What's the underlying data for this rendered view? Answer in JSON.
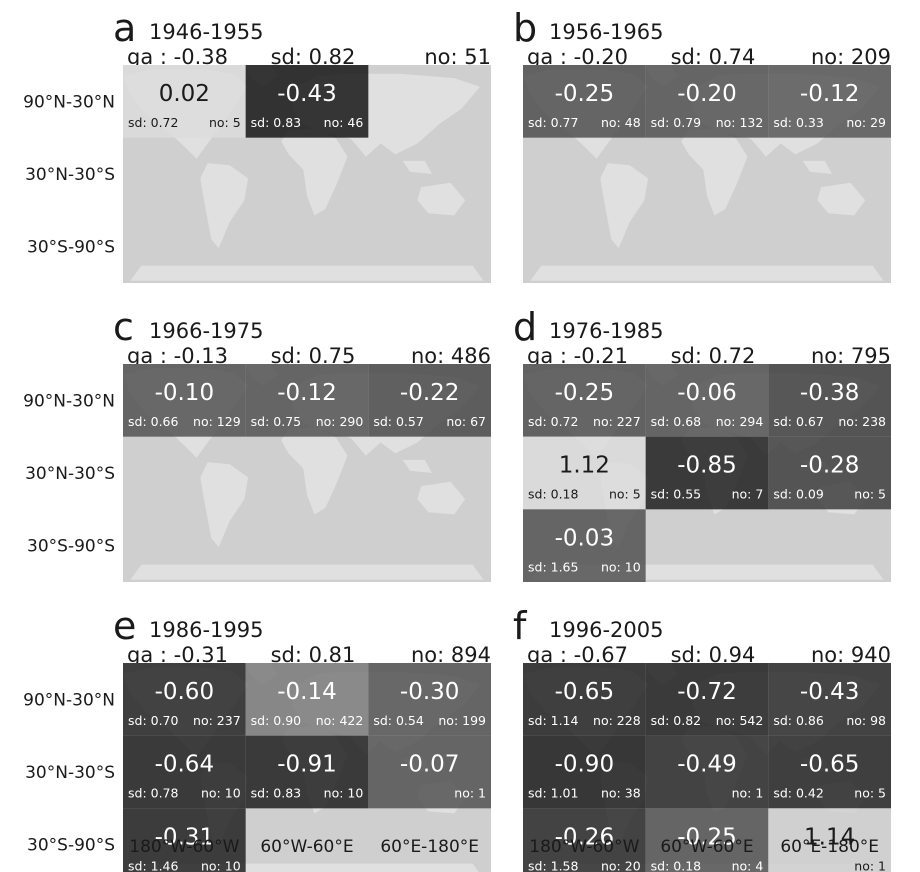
{
  "row_labels": [
    "90°N-30°N",
    "30°N-30°S",
    "30°S-90°S"
  ],
  "col_labels": [
    "180°W-60°W",
    "60°W-60°E",
    "60°E-180°E"
  ],
  "colors": {
    "map_bg": "#cfcfcf",
    "land": "#e0e0e0",
    "text_dark": "#1a1a1a",
    "text_light": "#ffffff"
  },
  "chart_data": {
    "type": "heatmap",
    "panels": [
      {
        "letter": "a",
        "period": "1946-1955",
        "ga": "ga : -0.38",
        "sd": "sd: 0.82",
        "no": "no: 51",
        "cells": [
          {
            "row": 0,
            "col": 0,
            "value": "0.02",
            "sd": "sd: 0.72",
            "no": "no: 5",
            "shade": 0.98
          },
          {
            "row": 0,
            "col": 1,
            "value": "-0.43",
            "sd": "sd: 0.83",
            "no": "no: 46",
            "shade": 0.0
          }
        ]
      },
      {
        "letter": "b",
        "period": "1956-1965",
        "ga": "ga : -0.20",
        "sd": "sd: 0.74",
        "no": "no: 209",
        "cells": [
          {
            "row": 0,
            "col": 0,
            "value": "-0.25",
            "sd": "sd: 0.77",
            "no": "no: 48",
            "shade": 0.28
          },
          {
            "row": 0,
            "col": 1,
            "value": "-0.20",
            "sd": "sd: 0.79",
            "no": "no: 132",
            "shade": 0.3
          },
          {
            "row": 0,
            "col": 2,
            "value": "-0.12",
            "sd": "sd: 0.33",
            "no": "no: 29",
            "shade": 0.32
          }
        ]
      },
      {
        "letter": "c",
        "period": "1966-1975",
        "ga": "ga : -0.13",
        "sd": "sd: 0.75",
        "no": "no: 486",
        "cells": [
          {
            "row": 0,
            "col": 0,
            "value": "-0.10",
            "sd": "sd: 0.66",
            "no": "no: 129",
            "shade": 0.3
          },
          {
            "row": 0,
            "col": 1,
            "value": "-0.12",
            "sd": "sd: 0.75",
            "no": "no: 290",
            "shade": 0.3
          },
          {
            "row": 0,
            "col": 2,
            "value": "-0.22",
            "sd": "sd: 0.57",
            "no": "no: 67",
            "shade": 0.25
          }
        ]
      },
      {
        "letter": "d",
        "period": "1976-1985",
        "ga": "ga : -0.21",
        "sd": "sd: 0.72",
        "no": "no: 795",
        "cells": [
          {
            "row": 0,
            "col": 0,
            "value": "-0.25",
            "sd": "sd: 0.72",
            "no": "no: 227",
            "shade": 0.28
          },
          {
            "row": 0,
            "col": 1,
            "value": "-0.06",
            "sd": "sd: 0.68",
            "no": "no: 294",
            "shade": 0.3
          },
          {
            "row": 0,
            "col": 2,
            "value": "-0.38",
            "sd": "sd: 0.67",
            "no": "no: 238",
            "shade": 0.2
          },
          {
            "row": 1,
            "col": 0,
            "value": "1.12",
            "sd": "sd: 0.18",
            "no": "no: 5",
            "shade": 0.98
          },
          {
            "row": 1,
            "col": 1,
            "value": "-0.85",
            "sd": "sd: 0.55",
            "no": "no: 7",
            "shade": 0.05
          },
          {
            "row": 1,
            "col": 2,
            "value": "-0.28",
            "sd": "sd: 0.09",
            "no": "no: 5",
            "shade": 0.2
          },
          {
            "row": 2,
            "col": 0,
            "value": "-0.03",
            "sd": "sd: 1.65",
            "no": "no: 10",
            "shade": 0.3
          }
        ]
      },
      {
        "letter": "e",
        "period": "1986-1995",
        "ga": "ga : -0.31",
        "sd": "sd: 0.81",
        "no": "no: 894",
        "cells": [
          {
            "row": 0,
            "col": 0,
            "value": "-0.60",
            "sd": "sd: 0.70",
            "no": "no: 237",
            "shade": 0.08
          },
          {
            "row": 0,
            "col": 1,
            "value": "-0.14",
            "sd": "sd: 0.90",
            "no": "no: 422",
            "shade": 0.5
          },
          {
            "row": 0,
            "col": 2,
            "value": "-0.30",
            "sd": "sd: 0.54",
            "no": "no: 199",
            "shade": 0.3
          },
          {
            "row": 1,
            "col": 0,
            "value": "-0.64",
            "sd": "sd: 0.78",
            "no": "no: 10",
            "shade": 0.05
          },
          {
            "row": 1,
            "col": 1,
            "value": "-0.91",
            "sd": "sd: 0.83",
            "no": "no: 10",
            "shade": 0.05
          },
          {
            "row": 1,
            "col": 2,
            "value": "-0.07",
            "sd": "",
            "no": "no: 1",
            "shade": 0.3
          },
          {
            "row": 2,
            "col": 0,
            "value": "-0.31",
            "sd": "sd: 1.46",
            "no": "no: 10",
            "shade": 0.06
          }
        ]
      },
      {
        "letter": "f",
        "period": "1996-2005",
        "ga": "ga : -0.67",
        "sd": "sd: 0.94",
        "no": "no: 940",
        "cells": [
          {
            "row": 0,
            "col": 0,
            "value": "-0.65",
            "sd": "sd: 1.14",
            "no": "no: 228",
            "shade": 0.06
          },
          {
            "row": 0,
            "col": 1,
            "value": "-0.72",
            "sd": "sd: 0.82",
            "no": "no: 542",
            "shade": 0.05
          },
          {
            "row": 0,
            "col": 2,
            "value": "-0.43",
            "sd": "sd: 0.86",
            "no": "no: 98",
            "shade": 0.1
          },
          {
            "row": 1,
            "col": 0,
            "value": "-0.90",
            "sd": "sd: 1.01",
            "no": "no: 38",
            "shade": 0.03
          },
          {
            "row": 1,
            "col": 1,
            "value": "-0.49",
            "sd": "",
            "no": "no: 1",
            "shade": 0.1
          },
          {
            "row": 1,
            "col": 2,
            "value": "-0.65",
            "sd": "sd: 0.42",
            "no": "no: 5",
            "shade": 0.08
          },
          {
            "row": 2,
            "col": 0,
            "value": "-0.26",
            "sd": "sd: 1.58",
            "no": "no: 20",
            "shade": 0.1
          },
          {
            "row": 2,
            "col": 1,
            "value": "-0.25",
            "sd": "sd: 0.18",
            "no": "no: 4",
            "shade": 0.3
          },
          {
            "row": 2,
            "col": 2,
            "value": "1.14",
            "sd": "",
            "no": "no: 1",
            "shade": 0.92
          }
        ]
      }
    ]
  }
}
